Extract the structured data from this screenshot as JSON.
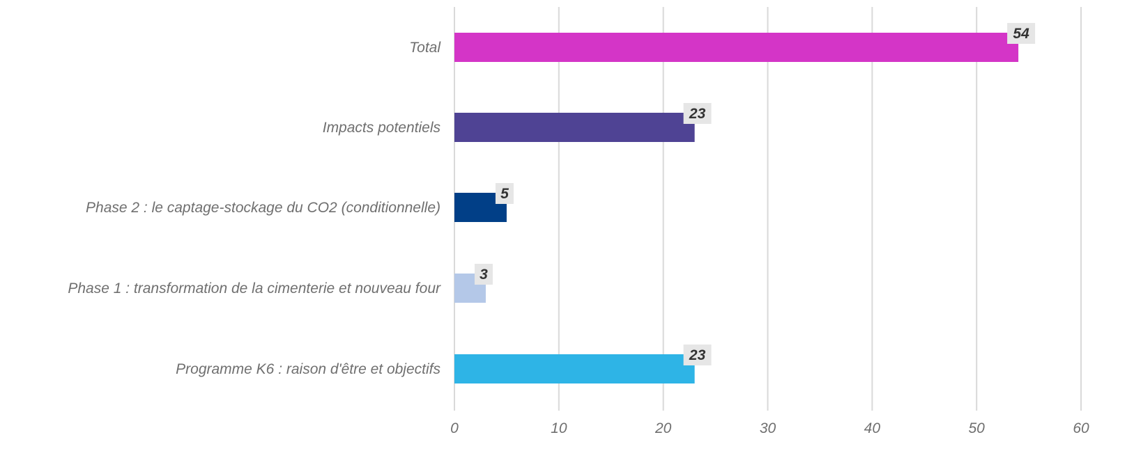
{
  "chart_data": {
    "type": "bar",
    "orientation": "horizontal",
    "categories": [
      "Total",
      "Impacts potentiels",
      "Phase 2 : le captage-stockage du CO2 (conditionnelle)",
      "Phase 1 : transformation de la cimenterie et nouveau four",
      "Programme K6 : raison d'être et objectifs"
    ],
    "values": [
      54,
      23,
      5,
      3,
      23
    ],
    "colors": [
      "#d435c7",
      "#4f4394",
      "#013f87",
      "#b4c8e8",
      "#2eb4e6"
    ],
    "data_labels": [
      "54",
      "23",
      "5",
      "3",
      "23"
    ],
    "xlim": [
      0,
      60
    ],
    "x_ticks": [
      0,
      10,
      20,
      30,
      40,
      50,
      60
    ],
    "x_tick_labels": [
      "0",
      "10",
      "20",
      "30",
      "40",
      "50",
      "60"
    ],
    "grid": "vertical",
    "grid_color": "#d9d9d9",
    "label_bg_color": "#e6e6e6",
    "legend": "none"
  }
}
